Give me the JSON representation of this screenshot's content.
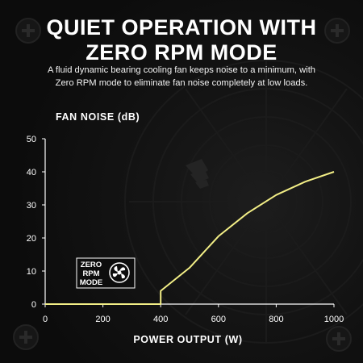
{
  "header": {
    "title_line1": "QUIET OPERATION WITH",
    "title_line2": "ZERO RPM MODE",
    "subtitle_line1": "A fluid dynamic bearing cooling fan keeps noise to a minimum, with",
    "subtitle_line2": "Zero RPM mode to eliminate fan noise completely at low loads."
  },
  "badge": {
    "line1": "ZERO",
    "line2": "RPM",
    "line3": "MODE",
    "icon": "fan-icon"
  },
  "colors": {
    "background": "#0b0b0b",
    "line": "#f2ee86",
    "axis": "#ffffff",
    "text": "#ffffff"
  },
  "chart_data": {
    "type": "line",
    "title": "",
    "xlabel": "POWER OUTPUT (W)",
    "ylabel": "FAN NOISE (dB)",
    "xlim": [
      0,
      1000
    ],
    "ylim": [
      0,
      50
    ],
    "xticks": [
      0,
      200,
      400,
      600,
      800,
      1000
    ],
    "yticks": [
      0,
      10,
      20,
      30,
      40,
      50
    ],
    "grid": false,
    "series": [
      {
        "x": [
          0,
          400,
          400,
          500,
          600,
          700,
          800,
          900,
          1000
        ],
        "y": [
          0,
          0,
          4,
          11,
          20.5,
          27.5,
          33,
          37,
          40
        ]
      }
    ]
  }
}
